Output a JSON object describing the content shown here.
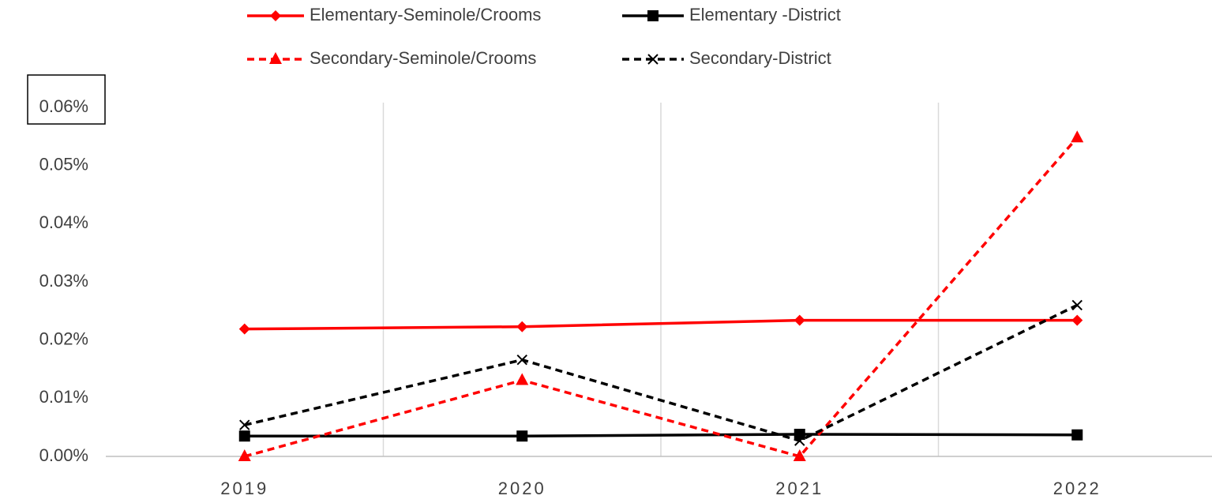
{
  "chart_data": {
    "type": "line",
    "categories": [
      "2019",
      "2020",
      "2021",
      "2022"
    ],
    "series": [
      {
        "name": "Elementary-Seminole/Crooms",
        "color": "#ff0000",
        "dash": false,
        "marker": "diamond",
        "values": [
          0.0219,
          0.0223,
          0.0234,
          0.0234
        ]
      },
      {
        "name": "Elementary -District",
        "color": "#000000",
        "dash": false,
        "marker": "square",
        "values": [
          0.0035,
          0.0035,
          0.0038,
          0.0037
        ]
      },
      {
        "name": "Secondary-Seminole/Crooms",
        "color": "#ff0000",
        "dash": true,
        "marker": "triangle",
        "values": [
          0,
          0.0131,
          0,
          0.0548
        ]
      },
      {
        "name": "Secondary-District",
        "color": "#000000",
        "dash": true,
        "marker": "x",
        "values": [
          0.0054,
          0.0166,
          0.0027,
          0.026
        ]
      }
    ],
    "ylim": [
      0,
      0.06
    ],
    "yticks": [
      {
        "value": 0,
        "label": "0.00%"
      },
      {
        "value": 0.01,
        "label": "0.01%"
      },
      {
        "value": 0.02,
        "label": "0.02%"
      },
      {
        "value": 0.03,
        "label": "0.03%"
      },
      {
        "value": 0.04,
        "label": "0.04%"
      },
      {
        "value": 0.05,
        "label": "0.05%"
      },
      {
        "value": 0.06,
        "label": "0.06%"
      }
    ],
    "grid": "x",
    "legend": "top"
  }
}
